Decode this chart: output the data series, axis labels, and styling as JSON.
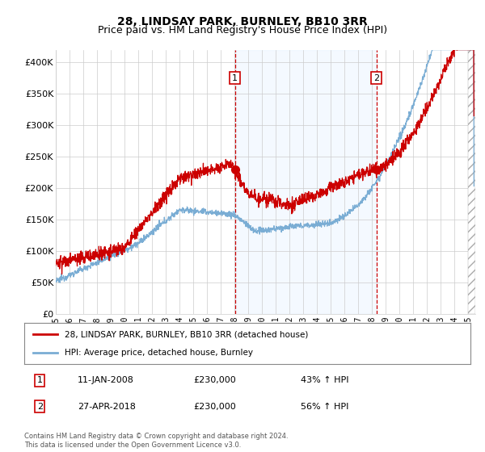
{
  "title": "28, LINDSAY PARK, BURNLEY, BB10 3RR",
  "subtitle": "Price paid vs. HM Land Registry's House Price Index (HPI)",
  "ylim": [
    0,
    420000
  ],
  "yticks": [
    0,
    50000,
    100000,
    150000,
    200000,
    250000,
    300000,
    350000,
    400000
  ],
  "ytick_labels": [
    "£0",
    "£50K",
    "£100K",
    "£150K",
    "£200K",
    "£250K",
    "£300K",
    "£350K",
    "£400K"
  ],
  "sale1_date": 2008.03,
  "sale1_price": 230000,
  "sale2_date": 2018.32,
  "sale2_price": 230000,
  "property_color": "#cc0000",
  "hpi_color": "#7aadd4",
  "vline_color": "#cc0000",
  "shade_color": "#ddeeff",
  "legend1": "28, LINDSAY PARK, BURNLEY, BB10 3RR (detached house)",
  "legend2": "HPI: Average price, detached house, Burnley",
  "annotation1_date": "11-JAN-2008",
  "annotation1_price": "£230,000",
  "annotation1_hpi": "43% ↑ HPI",
  "annotation2_date": "27-APR-2018",
  "annotation2_price": "£230,000",
  "annotation2_hpi": "56% ↑ HPI",
  "footer": "Contains HM Land Registry data © Crown copyright and database right 2024.\nThis data is licensed under the Open Government Licence v3.0.",
  "title_fontsize": 10,
  "subtitle_fontsize": 9,
  "hatch_start": 2025.0,
  "xlim_left": 1995.0,
  "xlim_right": 2025.5
}
